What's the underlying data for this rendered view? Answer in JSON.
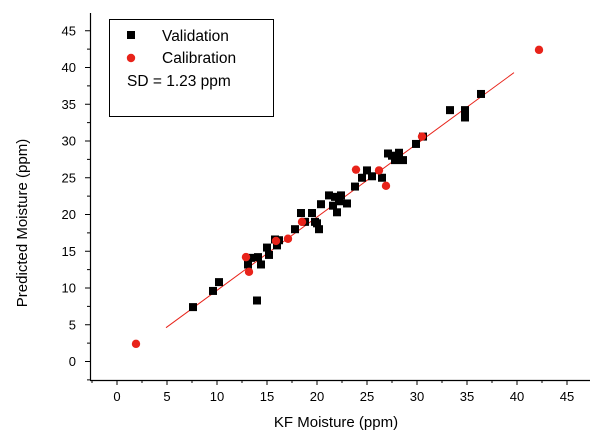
{
  "chart_data": {
    "type": "scatter",
    "xlabel": "KF Moisture (ppm)",
    "ylabel": "Predicted Moisture (ppm)",
    "xlim": [
      -3,
      47
    ],
    "ylim": [
      -2,
      47
    ],
    "x_ticks": [
      0,
      5,
      10,
      15,
      20,
      25,
      30,
      35,
      40,
      45
    ],
    "y_ticks": [
      0,
      5,
      10,
      15,
      20,
      25,
      30,
      35,
      40,
      45
    ],
    "legend_position": "top-left",
    "annotation": "SD = 1.23 ppm",
    "fit_line": {
      "x": [
        4.9,
        39.7
      ],
      "y": [
        4.6,
        39.3
      ],
      "color": "#e8231a"
    },
    "series": [
      {
        "name": "Validation",
        "marker": "square",
        "color": "#000000",
        "points": [
          [
            7.6,
            7.4
          ],
          [
            9.6,
            9.6
          ],
          [
            10.2,
            10.8
          ],
          [
            13.1,
            13.2
          ],
          [
            13.4,
            14.1
          ],
          [
            14.0,
            8.3
          ],
          [
            14.1,
            14.2
          ],
          [
            14.4,
            13.2
          ],
          [
            15.0,
            15.5
          ],
          [
            15.2,
            14.5
          ],
          [
            15.8,
            16.6
          ],
          [
            16.0,
            15.8
          ],
          [
            16.2,
            16.5
          ],
          [
            17.8,
            18.0
          ],
          [
            18.4,
            20.2
          ],
          [
            18.8,
            19.0
          ],
          [
            19.5,
            20.2
          ],
          [
            19.8,
            19.0
          ],
          [
            20.0,
            18.8
          ],
          [
            20.2,
            18.0
          ],
          [
            20.4,
            21.4
          ],
          [
            21.2,
            22.6
          ],
          [
            21.6,
            21.2
          ],
          [
            21.8,
            22.4
          ],
          [
            22.0,
            20.3
          ],
          [
            22.2,
            21.8
          ],
          [
            22.4,
            22.6
          ],
          [
            23.0,
            21.5
          ],
          [
            23.8,
            23.8
          ],
          [
            24.5,
            25.0
          ],
          [
            25.0,
            26.0
          ],
          [
            25.5,
            25.2
          ],
          [
            26.5,
            25.0
          ],
          [
            27.1,
            28.3
          ],
          [
            27.5,
            28.0
          ],
          [
            27.8,
            27.4
          ],
          [
            28.2,
            28.4
          ],
          [
            28.6,
            27.4
          ],
          [
            29.9,
            29.6
          ],
          [
            30.6,
            30.6
          ],
          [
            33.3,
            34.2
          ],
          [
            34.8,
            34.2
          ],
          [
            34.8,
            33.2
          ],
          [
            36.4,
            36.4
          ]
        ]
      },
      {
        "name": "Calibration",
        "marker": "circle",
        "color": "#e8231a",
        "points": [
          [
            1.9,
            2.4
          ],
          [
            12.9,
            14.2
          ],
          [
            13.2,
            12.2
          ],
          [
            15.9,
            16.4
          ],
          [
            17.1,
            16.7
          ],
          [
            18.5,
            19.0
          ],
          [
            23.9,
            26.1
          ],
          [
            26.2,
            26.0
          ],
          [
            26.9,
            23.9
          ],
          [
            30.5,
            30.6
          ],
          [
            42.2,
            42.4
          ]
        ]
      }
    ]
  }
}
